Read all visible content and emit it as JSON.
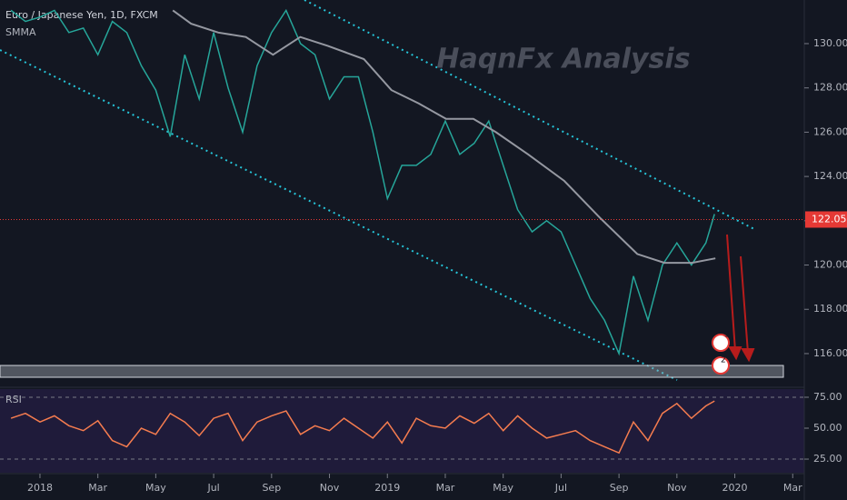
{
  "chart_data": [
    {
      "type": "line",
      "title": "Euro / Japanese Yen, 1D, FXCM",
      "annotations": [
        "HaqnFx Analysis",
        "3",
        "2"
      ],
      "current_price": {
        "value": 122.055,
        "label": "122.055"
      },
      "xlim": [
        -1.38,
        26.4
      ],
      "xticks": [
        {
          "value": 0,
          "label": "2018"
        },
        {
          "value": 2,
          "label": "Mar"
        },
        {
          "value": 4,
          "label": "May"
        },
        {
          "value": 6,
          "label": "Jul"
        },
        {
          "value": 8,
          "label": "Sep"
        },
        {
          "value": 10,
          "label": "Nov"
        },
        {
          "value": 12,
          "label": "2019"
        },
        {
          "value": 14,
          "label": "Mar"
        },
        {
          "value": 16,
          "label": "May"
        },
        {
          "value": 18,
          "label": "Jul"
        },
        {
          "value": 20,
          "label": "Sep"
        },
        {
          "value": 22,
          "label": "Nov"
        },
        {
          "value": 24,
          "label": "2020"
        },
        {
          "value": 26,
          "label": "Mar"
        }
      ],
      "ylim": [
        114.52,
        131.97
      ],
      "yticks": [
        {
          "value": 116,
          "label": "116.000"
        },
        {
          "value": 118,
          "label": "118.000"
        },
        {
          "value": 120,
          "label": "120.000"
        },
        {
          "value": 122,
          "label": "122.000"
        },
        {
          "value": 124,
          "label": "124.000"
        },
        {
          "value": 126,
          "label": "126.000"
        },
        {
          "value": 128,
          "label": "128.000"
        },
        {
          "value": 130,
          "label": "130.000"
        }
      ],
      "series": [
        {
          "color": "#26a69a",
          "x": [
            -1,
            -0.5,
            0,
            0.5,
            1,
            1.5,
            2,
            2.5,
            3,
            3.5,
            4,
            4.5,
            5,
            5.5,
            6,
            6.5,
            7,
            7.5,
            8,
            8.5,
            9,
            9.5,
            10,
            10.5,
            11,
            11.5,
            12,
            12.5,
            13,
            13.5,
            14,
            14.5,
            15,
            15.5,
            16,
            16.5,
            17,
            17.5,
            18,
            18.5,
            19,
            19.5,
            20,
            20.5,
            21,
            21.5,
            22,
            22.5,
            23,
            23.3
          ],
          "values": [
            131.5,
            131,
            131.2,
            131.5,
            130.5,
            130.7,
            129.5,
            131,
            130.5,
            129,
            127.9,
            125.8,
            129.5,
            127.5,
            130.5,
            128,
            126,
            129,
            130.5,
            131.5,
            130,
            129.5,
            127.5,
            128.5,
            128.5,
            126,
            123,
            124.5,
            124.5,
            125,
            126.5,
            125,
            125.5,
            126.5,
            124.5,
            122.5,
            121.5,
            122,
            121.5,
            120,
            118.5,
            117.5,
            116,
            119.5,
            117.5,
            120,
            121,
            120,
            121,
            122.3
          ]
        },
        {
          "name": "SMMA",
          "color": "#9598a1",
          "x": [
            4.59,
            5.22,
            6.16,
            7.11,
            8.05,
            8.99,
            9.94,
            11.19,
            12.14,
            13.08,
            14.03,
            14.97,
            15.75,
            16.86,
            18.11,
            19.37,
            20.63,
            21.57,
            22.52,
            23.33
          ],
          "values": [
            131.5,
            130.9,
            130.5,
            130.3,
            129.5,
            130.3,
            129.9,
            129.3,
            127.9,
            127.3,
            126.6,
            126.6,
            126,
            125,
            123.8,
            122.1,
            120.5,
            120.1,
            120.1,
            120.3
          ]
        }
      ]
    },
    {
      "type": "line",
      "title": "RSI",
      "ylim": [
        14,
        81.6
      ],
      "yticks": [
        {
          "value": 25,
          "label": "25.00"
        },
        {
          "value": 50,
          "label": "50.00"
        },
        {
          "value": 75,
          "label": "75.00"
        }
      ],
      "series": [
        {
          "color": "#f57c4f",
          "x": [
            -1,
            -0.5,
            0,
            0.5,
            1,
            1.5,
            2,
            2.5,
            3,
            3.5,
            4,
            4.5,
            5,
            5.5,
            6,
            6.5,
            7,
            7.5,
            8,
            8.5,
            9,
            9.5,
            10,
            10.5,
            11,
            11.5,
            12,
            12.5,
            13,
            13.5,
            14,
            14.5,
            15,
            15.5,
            16,
            16.5,
            17,
            17.5,
            18,
            18.5,
            19,
            19.5,
            20,
            20.5,
            21,
            21.5,
            22,
            22.5,
            23,
            23.3
          ],
          "values": [
            58,
            62,
            55,
            60,
            52,
            48,
            56,
            40,
            35,
            50,
            45,
            62,
            55,
            44,
            58,
            62,
            40,
            55,
            60,
            64,
            45,
            52,
            48,
            58,
            50,
            42,
            55,
            38,
            58,
            52,
            50,
            60,
            54,
            62,
            48,
            60,
            50,
            42,
            45,
            48,
            40,
            35,
            30,
            55,
            40,
            62,
            70,
            58,
            68,
            72
          ]
        }
      ]
    }
  ]
}
